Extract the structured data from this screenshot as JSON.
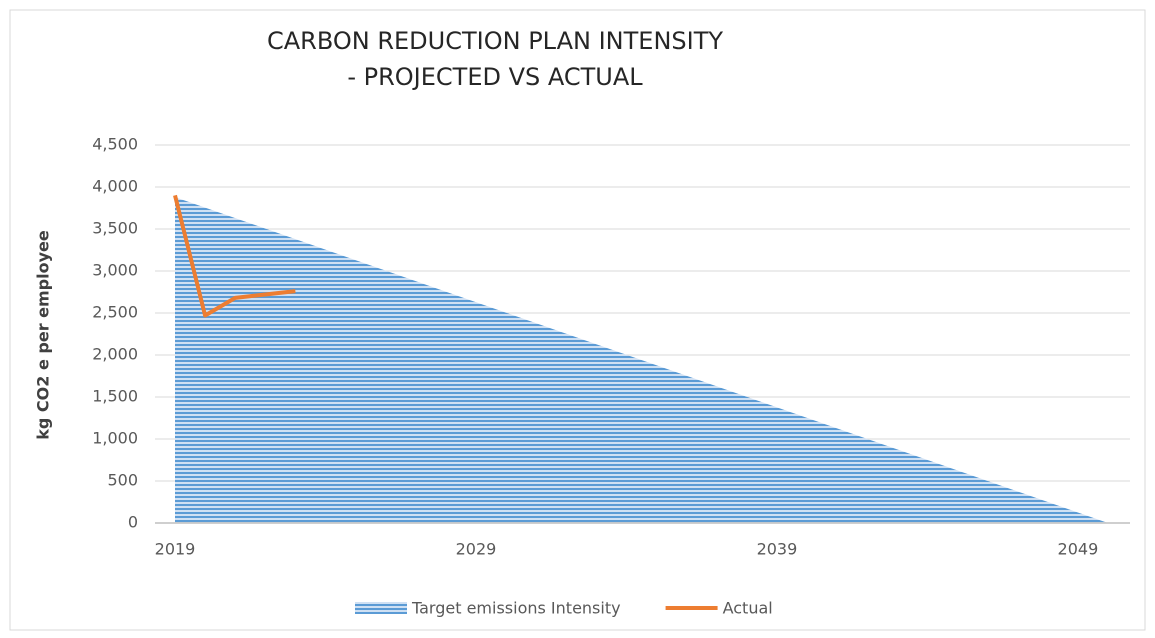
{
  "chart_data": {
    "type": "area-line",
    "title": [
      "CARBON REDUCTION PLAN INTENSITY",
      "- PROJECTED VS ACTUAL"
    ],
    "y_label": "kg CO2 e per employee",
    "xlim": [
      2019,
      2050
    ],
    "xticks": [
      2019,
      2029,
      2039,
      2049
    ],
    "ylim": [
      0,
      4500
    ],
    "yticks": [
      0,
      500,
      {
        "value": 1000,
        "label": "1,000"
      },
      {
        "value": 1500,
        "label": "1,500"
      },
      {
        "value": 2000,
        "label": "2,000"
      },
      {
        "value": 2500,
        "label": "2,500"
      },
      {
        "value": 3000,
        "label": "3,000"
      },
      {
        "value": 3500,
        "label": "3,500"
      },
      {
        "value": 4000,
        "label": "4,000"
      },
      {
        "value": 4500,
        "label": "4,500"
      }
    ],
    "grid": true,
    "legend": "bottom",
    "series": [
      {
        "name": "Target emissions Intensity",
        "kind": "area",
        "color": "#5b9bd5",
        "x": [
          2019,
          2050
        ],
        "values": [
          3880,
          0
        ]
      },
      {
        "name": "Actual",
        "kind": "line",
        "color": "#ed7d31",
        "x": [
          2019,
          2020,
          2021,
          2022,
          2023
        ],
        "values": [
          3900,
          2470,
          2680,
          2720,
          2760
        ]
      }
    ]
  }
}
